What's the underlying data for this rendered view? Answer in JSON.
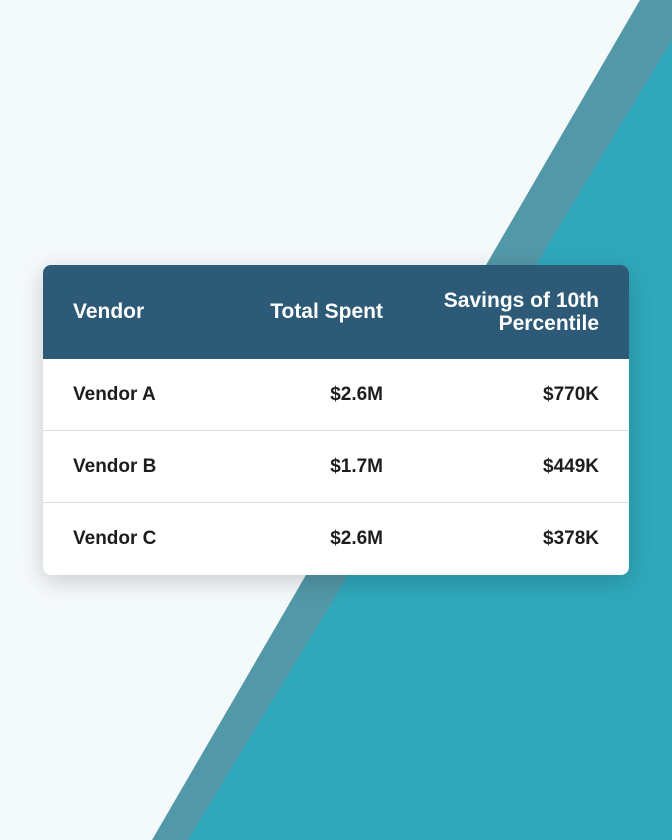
{
  "table": {
    "headers": [
      "Vendor",
      "Total Spent",
      "Savings of 10th Percentile"
    ],
    "rows": [
      [
        "Vendor A",
        "$2.6M",
        "$770K"
      ],
      [
        "Vendor B",
        "$1.7M",
        "$449K"
      ],
      [
        "Vendor C",
        "$2.6M",
        "$378K"
      ]
    ]
  },
  "colors": {
    "header": "#2d5a77",
    "teal": "#2fa8bb",
    "stripe": "#5398a8",
    "background": "#f4f9f9"
  }
}
